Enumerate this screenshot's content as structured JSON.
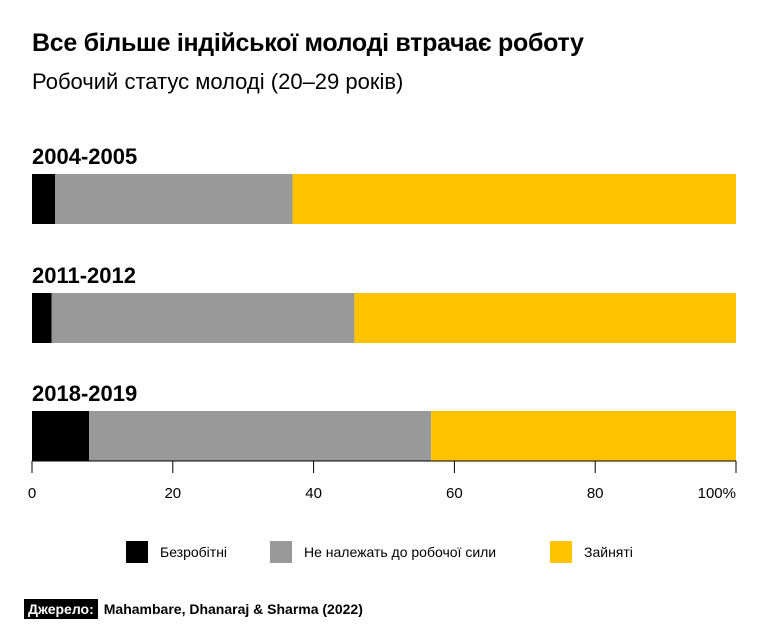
{
  "title": "Все більше індійської молоді втрачає роботу",
  "subtitle": "Робочий статус молоді (20–29 років)",
  "source": {
    "label": "Джерело:",
    "text": "Mahambare, Dhanaraj & Sharma (2022)"
  },
  "colors": {
    "unemployed": "#000000",
    "not_in_labour_force": "#999999",
    "employed": "#ffc300"
  },
  "chart_data": {
    "type": "bar",
    "orientation": "horizontal",
    "stacked": true,
    "categories": [
      "2004-2005",
      "2011-2012",
      "2018-2019"
    ],
    "series": [
      {
        "name": "Безробітні",
        "values": [
          3.3,
          2.8,
          8.1
        ]
      },
      {
        "name": "Не належать до робочої сили",
        "values": [
          33.7,
          43.0,
          48.6
        ]
      },
      {
        "name": "Зайняті",
        "values": [
          63.0,
          54.2,
          43.3
        ]
      }
    ],
    "xlim": [
      0,
      100
    ],
    "xticks": [
      0,
      20,
      40,
      60,
      80,
      100
    ],
    "xtick_labels": [
      "0",
      "20",
      "40",
      "60",
      "80",
      "100%"
    ],
    "legend_position": "bottom",
    "grid": false
  }
}
